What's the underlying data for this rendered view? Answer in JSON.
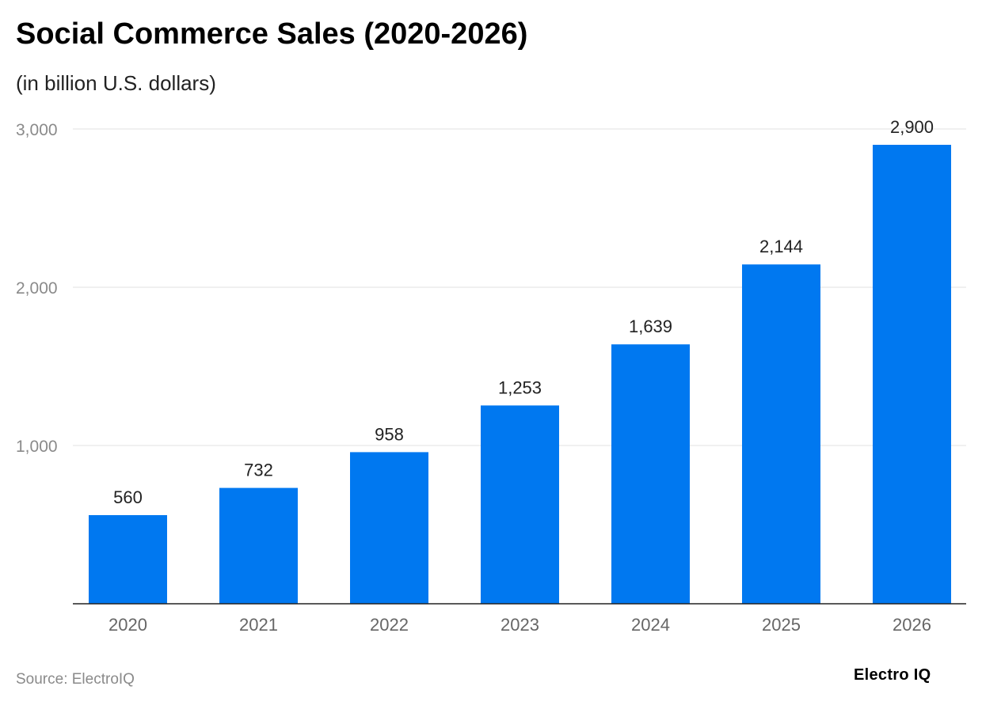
{
  "chart_data": {
    "type": "bar",
    "title": "Social Commerce Sales (2020-2026)",
    "subtitle": "(in billion U.S. dollars)",
    "categories": [
      "2020",
      "2021",
      "2022",
      "2023",
      "2024",
      "2025",
      "2026"
    ],
    "values": [
      560,
      732,
      958,
      1253,
      1639,
      2144,
      2900
    ],
    "data_labels": [
      "560",
      "732",
      "958",
      "1,253",
      "1,639",
      "2,144",
      "2,900"
    ],
    "yticks": [
      1000,
      2000,
      3000
    ],
    "ytick_labels": [
      "1,000",
      "2,000",
      "3,000"
    ],
    "ylim": [
      0,
      3000
    ],
    "xlabel": "",
    "ylabel": "",
    "grid": true,
    "bar_color": "#0078f0"
  },
  "footer": {
    "source": "Source: ElectroIQ",
    "logo": "Electro IQ"
  }
}
